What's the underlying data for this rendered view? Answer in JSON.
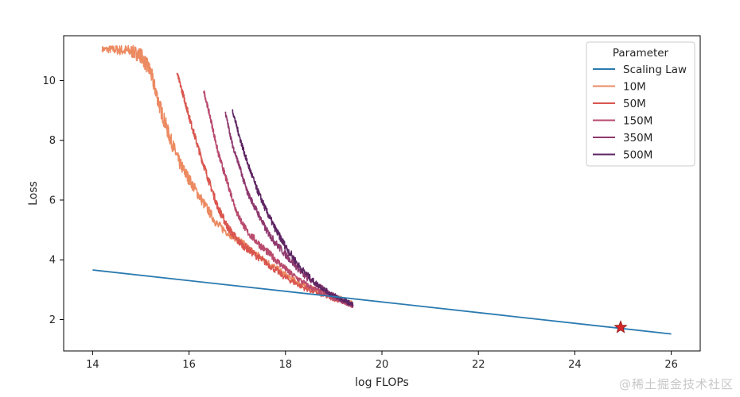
{
  "chart_data": {
    "type": "line",
    "xlabel": "log FLOPs",
    "ylabel": "Loss",
    "xlim": [
      13.4,
      26.6
    ],
    "ylim": [
      0.95,
      11.5
    ],
    "xticks": [
      14,
      16,
      18,
      20,
      22,
      24,
      26
    ],
    "yticks": [
      2,
      4,
      6,
      8,
      10
    ],
    "grid": false,
    "legend": {
      "title": "Parameter",
      "placement": "top-right"
    },
    "series": [
      {
        "name": "Scaling Law",
        "color": "#2a7ab0",
        "noise": 0,
        "x": [
          14,
          26
        ],
        "y": [
          3.66,
          1.52
        ]
      },
      {
        "name": "10M",
        "color": "#ec8a62",
        "noise": 0.05,
        "x": [
          14.2,
          14.5,
          14.8,
          15.0,
          15.2,
          15.4,
          15.6,
          15.8,
          16.0,
          16.3,
          16.6,
          17.0,
          17.3,
          17.6,
          18.0,
          18.3,
          18.6,
          19.0,
          19.4
        ],
        "y": [
          11.05,
          11.03,
          10.98,
          10.85,
          10.3,
          9.1,
          8.1,
          7.25,
          6.7,
          5.9,
          5.15,
          4.7,
          4.3,
          3.95,
          3.5,
          3.2,
          3.0,
          2.8,
          2.55
        ]
      },
      {
        "name": "50M",
        "color": "#d9564f",
        "noise": 0.05,
        "x": [
          15.75,
          15.9,
          16.0,
          16.2,
          16.4,
          16.6,
          16.8,
          17.0,
          17.3,
          17.6,
          18.0,
          18.4,
          18.8,
          19.2,
          19.4
        ],
        "y": [
          10.25,
          9.4,
          8.8,
          7.7,
          6.7,
          5.75,
          5.1,
          4.65,
          4.25,
          3.9,
          3.4,
          3.05,
          2.8,
          2.6,
          2.45
        ]
      },
      {
        "name": "150M",
        "color": "#b84b6e",
        "noise": 0.05,
        "x": [
          16.3,
          16.45,
          16.6,
          16.8,
          17.0,
          17.2,
          17.5,
          17.8,
          18.1,
          18.5,
          18.9,
          19.2,
          19.4
        ],
        "y": [
          9.7,
          8.7,
          7.6,
          6.55,
          5.55,
          4.95,
          4.45,
          4.0,
          3.55,
          3.1,
          2.8,
          2.6,
          2.45
        ]
      },
      {
        "name": "350M",
        "color": "#8f3a6f",
        "noise": 0.05,
        "x": [
          16.75,
          16.9,
          17.05,
          17.2,
          17.4,
          17.6,
          17.8,
          18.1,
          18.4,
          18.8,
          19.1,
          19.4
        ],
        "y": [
          8.95,
          7.85,
          7.1,
          6.3,
          5.65,
          5.0,
          4.55,
          4.0,
          3.45,
          3.0,
          2.7,
          2.5
        ]
      },
      {
        "name": "500M",
        "color": "#5e2563",
        "noise": 0.05,
        "x": [
          16.9,
          17.05,
          17.2,
          17.4,
          17.6,
          17.8,
          18.0,
          18.3,
          18.6,
          18.9,
          19.2,
          19.4
        ],
        "y": [
          9.0,
          8.1,
          7.3,
          6.4,
          5.65,
          5.0,
          4.45,
          3.75,
          3.25,
          2.9,
          2.65,
          2.5
        ]
      }
    ],
    "annotations": [
      {
        "type": "star-marker",
        "x": 24.95,
        "y": 1.74,
        "color": "#d62728"
      }
    ]
  },
  "watermark": "@稀土掘金技术社区"
}
